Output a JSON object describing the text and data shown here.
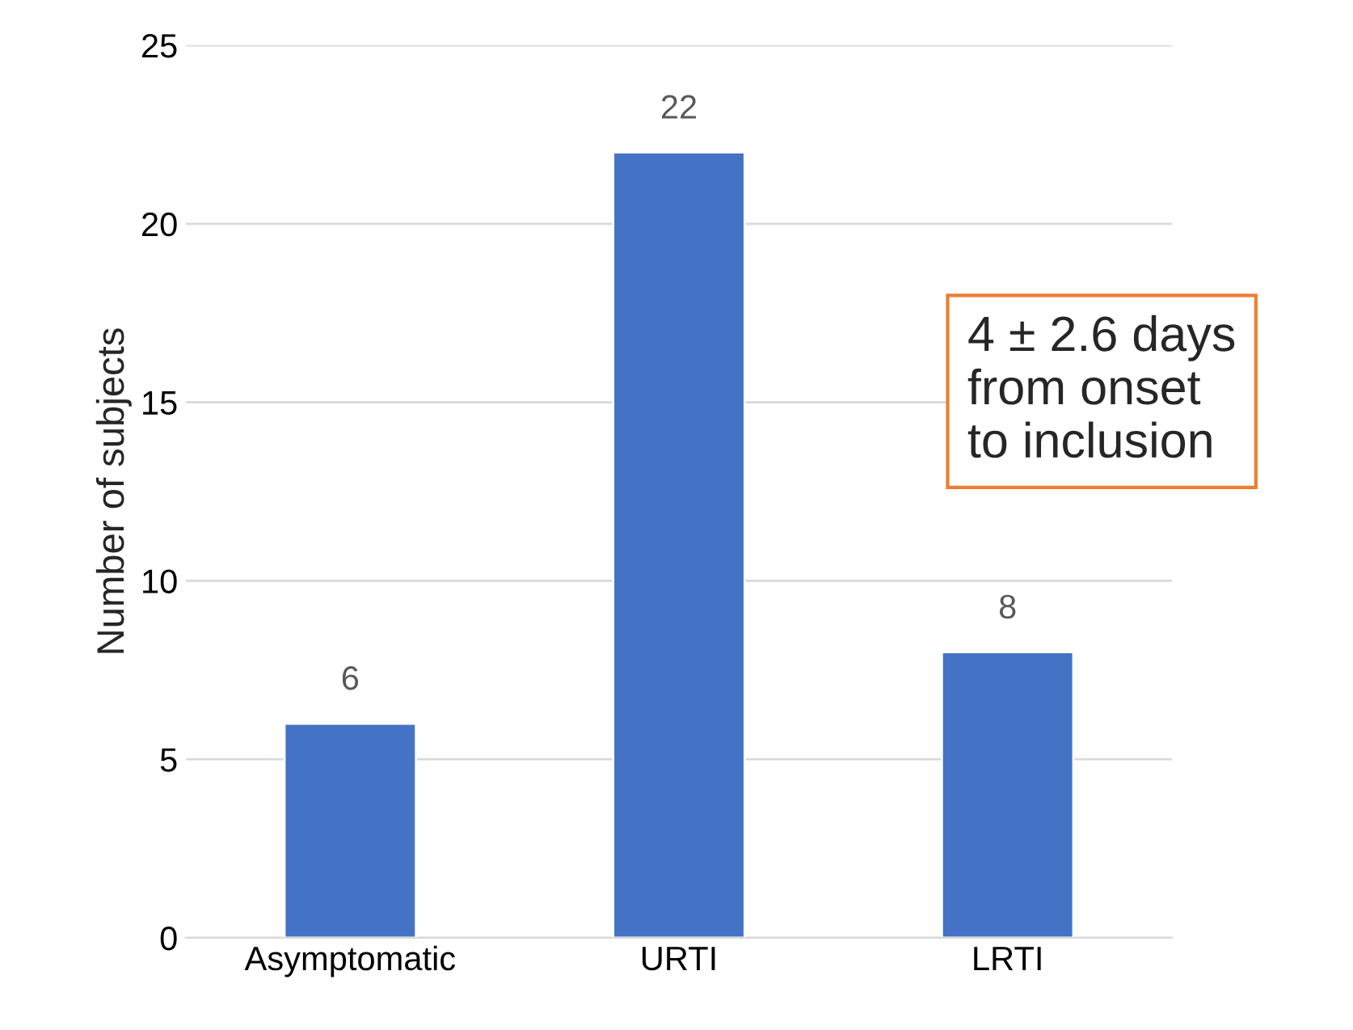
{
  "chart_data": {
    "type": "bar",
    "ylabel": "Number of subjects",
    "categories": [
      "Asymptomatic",
      "URTI",
      "LRTI"
    ],
    "values": [
      6,
      22,
      8
    ],
    "color": "#4472c4",
    "ylim": [
      0,
      25
    ],
    "yticks": [
      0,
      5,
      10,
      15,
      20,
      25
    ],
    "grid": "y",
    "data_labels": true,
    "annotations": [
      "4 ± 2.6 days\nfrom onset\nto inclusion"
    ]
  }
}
